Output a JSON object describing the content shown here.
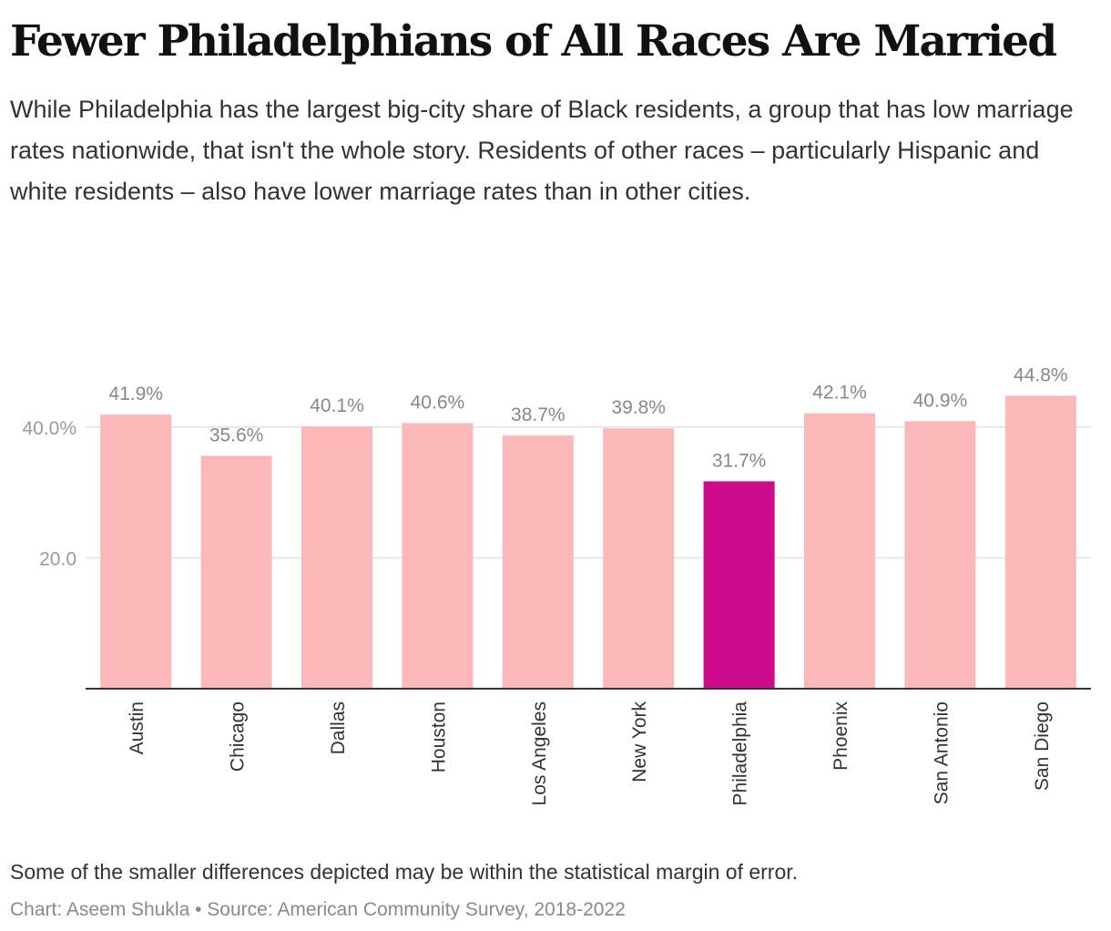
{
  "header": {
    "title": "Fewer Philadelphians of All Races Are Married",
    "subtitle": "While Philadelphia has the largest big-city share of Black residents, a group that has low marriage rates nationwide, that isn't the whole story. Residents of other races – particularly Hispanic and white residents – also have lower marriage rates than in other cities."
  },
  "footer": {
    "note": "Some of the smaller differences depicted may be within the statistical margin of error.",
    "source": "Chart: Aseem Shukla • Source: American Community Survey, 2018-2022"
  },
  "colors": {
    "bar": "#fcb7b9",
    "highlight": "#cc0a8c",
    "grid": "#e2e2e2",
    "axis": "#333333"
  },
  "chart_data": {
    "type": "bar",
    "title": "Fewer Philadelphians of All Races Are Married",
    "xlabel": "",
    "ylabel": "",
    "categories": [
      "Austin",
      "Chicago",
      "Dallas",
      "Houston",
      "Los Angeles",
      "New York",
      "Philadelphia",
      "Phoenix",
      "San Antonio",
      "San Diego"
    ],
    "values": [
      41.9,
      35.6,
      40.1,
      40.6,
      38.7,
      39.8,
      31.7,
      42.1,
      40.9,
      44.8
    ],
    "value_labels": [
      "41.9%",
      "35.6%",
      "40.1%",
      "40.6%",
      "38.7%",
      "39.8%",
      "31.7%",
      "42.1%",
      "40.9%",
      "44.8%"
    ],
    "highlight": "Philadelphia",
    "yticks": [
      20,
      40
    ],
    "ytick_labels": [
      "20.0",
      "40.0%"
    ],
    "ylim": [
      0,
      44.8
    ],
    "grid": true
  }
}
